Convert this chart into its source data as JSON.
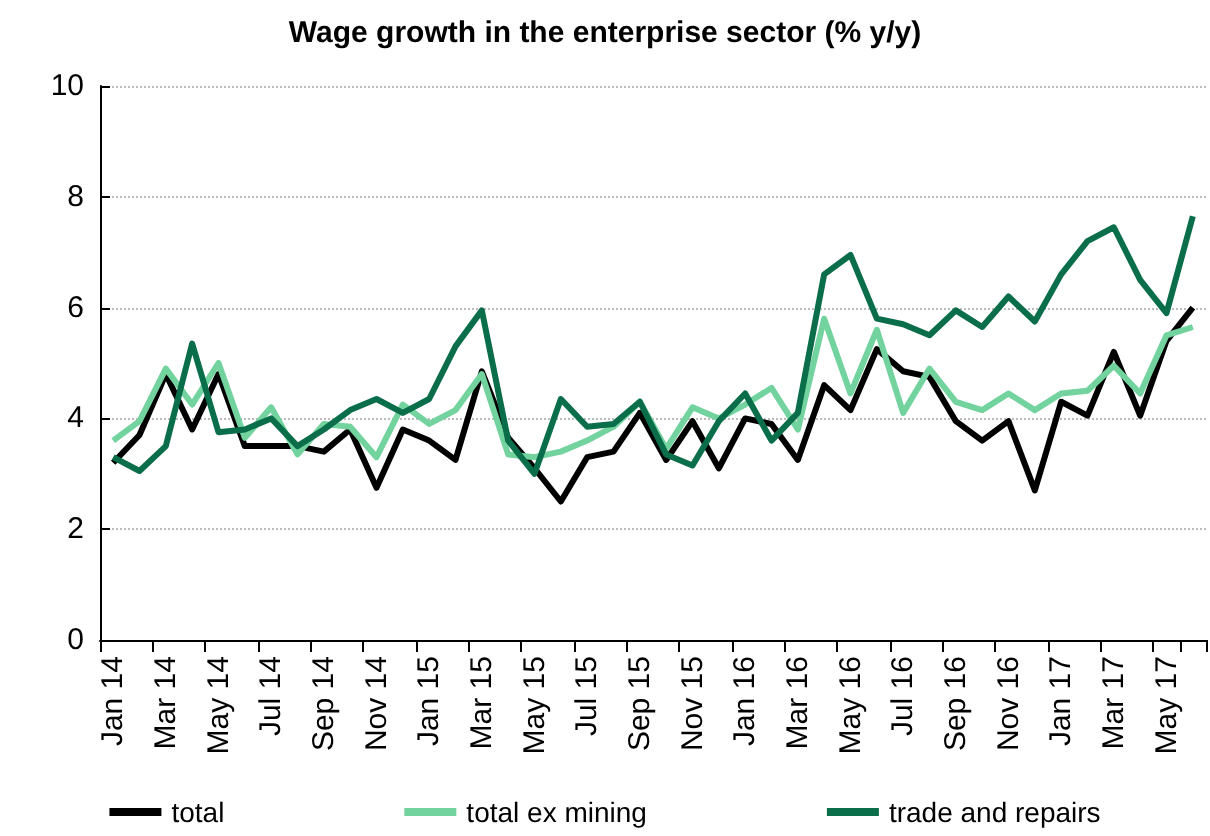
{
  "chart_data": {
    "type": "line",
    "title": "Wage growth in the enterprise sector (% y/y)",
    "categories": [
      "Jan 14",
      null,
      "Mar 14",
      null,
      "May 14",
      null,
      "Jul 14",
      null,
      "Sep 14",
      null,
      "Nov 14",
      null,
      "Jan 15",
      null,
      "Mar 15",
      null,
      "May 15",
      null,
      "Jul 15",
      null,
      "Sep 15",
      null,
      "Nov 15",
      null,
      "Jan 16",
      null,
      "Mar 16",
      null,
      "May 16",
      null,
      "Jul 16",
      null,
      "Sep 16",
      null,
      "Nov 16",
      null,
      "Jan 17",
      null,
      "Mar 17",
      null,
      "May 17",
      null
    ],
    "series": [
      {
        "name": "total",
        "color": "#000000",
        "values": [
          3.2,
          3.7,
          4.8,
          3.8,
          4.8,
          3.5,
          3.5,
          3.5,
          3.4,
          3.8,
          2.75,
          3.8,
          3.6,
          3.25,
          4.85,
          3.65,
          3.1,
          2.5,
          3.3,
          3.4,
          4.1,
          3.25,
          3.95,
          3.1,
          4.0,
          3.9,
          3.25,
          4.6,
          4.15,
          5.25,
          4.85,
          4.75,
          3.95,
          3.6,
          3.95,
          2.7,
          4.3,
          4.05,
          5.2,
          4.05,
          5.4,
          6.0
        ]
      },
      {
        "name": "total ex mining",
        "color": "#72d39e",
        "values": [
          3.6,
          3.95,
          4.9,
          4.25,
          5.0,
          3.65,
          4.2,
          3.35,
          3.9,
          3.85,
          3.3,
          4.25,
          3.9,
          4.15,
          4.8,
          3.35,
          3.3,
          3.4,
          3.6,
          3.85,
          4.3,
          3.45,
          4.2,
          4.0,
          4.25,
          4.55,
          3.8,
          5.8,
          4.45,
          5.6,
          4.1,
          4.9,
          4.3,
          4.15,
          4.45,
          4.15,
          4.45,
          4.5,
          4.95,
          4.45,
          5.5,
          5.65
        ]
      },
      {
        "name": "trade and repairs",
        "color": "#0b6e4a",
        "values": [
          3.3,
          3.05,
          3.5,
          5.35,
          3.75,
          3.8,
          4.0,
          3.5,
          3.8,
          4.15,
          4.35,
          4.1,
          4.35,
          5.3,
          5.95,
          3.6,
          3.0,
          4.35,
          3.85,
          3.9,
          4.3,
          3.35,
          3.15,
          3.95,
          4.45,
          3.6,
          4.1,
          6.6,
          6.95,
          5.8,
          5.7,
          5.5,
          5.95,
          5.65,
          6.2,
          5.75,
          6.6,
          7.2,
          7.45,
          6.5,
          5.9,
          7.65
        ]
      }
    ],
    "ylim": [
      0,
      10
    ],
    "yticks": [
      0,
      2,
      4,
      6,
      8,
      10
    ],
    "grid": "y",
    "legend": "bottom",
    "marker": "none",
    "line_style": "solid"
  }
}
